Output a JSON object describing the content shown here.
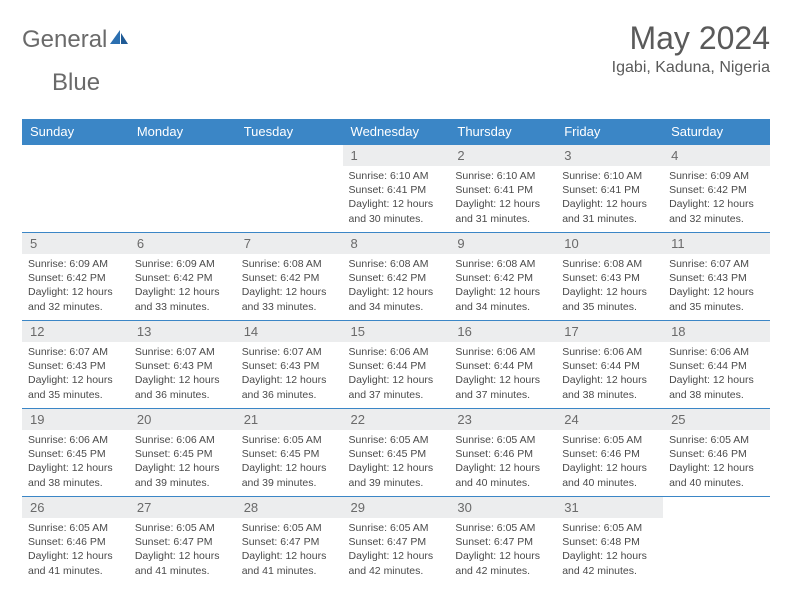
{
  "logo": {
    "part1": "General",
    "part2": "Blue"
  },
  "title": "May 2024",
  "location": "Igabi, Kaduna, Nigeria",
  "colors": {
    "header_bg": "#3b86c6",
    "header_text": "#ffffff",
    "daynum_bg": "#ecedee",
    "border": "#3b86c6",
    "text": "#4a4a4a",
    "logo_gray": "#6a6a6a",
    "logo_blue": "#2b6fb0"
  },
  "day_headers": [
    "Sunday",
    "Monday",
    "Tuesday",
    "Wednesday",
    "Thursday",
    "Friday",
    "Saturday"
  ],
  "weeks": [
    [
      null,
      null,
      null,
      {
        "n": "1",
        "sr": "6:10 AM",
        "ss": "6:41 PM",
        "dl": "12 hours and 30 minutes."
      },
      {
        "n": "2",
        "sr": "6:10 AM",
        "ss": "6:41 PM",
        "dl": "12 hours and 31 minutes."
      },
      {
        "n": "3",
        "sr": "6:10 AM",
        "ss": "6:41 PM",
        "dl": "12 hours and 31 minutes."
      },
      {
        "n": "4",
        "sr": "6:09 AM",
        "ss": "6:42 PM",
        "dl": "12 hours and 32 minutes."
      }
    ],
    [
      {
        "n": "5",
        "sr": "6:09 AM",
        "ss": "6:42 PM",
        "dl": "12 hours and 32 minutes."
      },
      {
        "n": "6",
        "sr": "6:09 AM",
        "ss": "6:42 PM",
        "dl": "12 hours and 33 minutes."
      },
      {
        "n": "7",
        "sr": "6:08 AM",
        "ss": "6:42 PM",
        "dl": "12 hours and 33 minutes."
      },
      {
        "n": "8",
        "sr": "6:08 AM",
        "ss": "6:42 PM",
        "dl": "12 hours and 34 minutes."
      },
      {
        "n": "9",
        "sr": "6:08 AM",
        "ss": "6:42 PM",
        "dl": "12 hours and 34 minutes."
      },
      {
        "n": "10",
        "sr": "6:08 AM",
        "ss": "6:43 PM",
        "dl": "12 hours and 35 minutes."
      },
      {
        "n": "11",
        "sr": "6:07 AM",
        "ss": "6:43 PM",
        "dl": "12 hours and 35 minutes."
      }
    ],
    [
      {
        "n": "12",
        "sr": "6:07 AM",
        "ss": "6:43 PM",
        "dl": "12 hours and 35 minutes."
      },
      {
        "n": "13",
        "sr": "6:07 AM",
        "ss": "6:43 PM",
        "dl": "12 hours and 36 minutes."
      },
      {
        "n": "14",
        "sr": "6:07 AM",
        "ss": "6:43 PM",
        "dl": "12 hours and 36 minutes."
      },
      {
        "n": "15",
        "sr": "6:06 AM",
        "ss": "6:44 PM",
        "dl": "12 hours and 37 minutes."
      },
      {
        "n": "16",
        "sr": "6:06 AM",
        "ss": "6:44 PM",
        "dl": "12 hours and 37 minutes."
      },
      {
        "n": "17",
        "sr": "6:06 AM",
        "ss": "6:44 PM",
        "dl": "12 hours and 38 minutes."
      },
      {
        "n": "18",
        "sr": "6:06 AM",
        "ss": "6:44 PM",
        "dl": "12 hours and 38 minutes."
      }
    ],
    [
      {
        "n": "19",
        "sr": "6:06 AM",
        "ss": "6:45 PM",
        "dl": "12 hours and 38 minutes."
      },
      {
        "n": "20",
        "sr": "6:06 AM",
        "ss": "6:45 PM",
        "dl": "12 hours and 39 minutes."
      },
      {
        "n": "21",
        "sr": "6:05 AM",
        "ss": "6:45 PM",
        "dl": "12 hours and 39 minutes."
      },
      {
        "n": "22",
        "sr": "6:05 AM",
        "ss": "6:45 PM",
        "dl": "12 hours and 39 minutes."
      },
      {
        "n": "23",
        "sr": "6:05 AM",
        "ss": "6:46 PM",
        "dl": "12 hours and 40 minutes."
      },
      {
        "n": "24",
        "sr": "6:05 AM",
        "ss": "6:46 PM",
        "dl": "12 hours and 40 minutes."
      },
      {
        "n": "25",
        "sr": "6:05 AM",
        "ss": "6:46 PM",
        "dl": "12 hours and 40 minutes."
      }
    ],
    [
      {
        "n": "26",
        "sr": "6:05 AM",
        "ss": "6:46 PM",
        "dl": "12 hours and 41 minutes."
      },
      {
        "n": "27",
        "sr": "6:05 AM",
        "ss": "6:47 PM",
        "dl": "12 hours and 41 minutes."
      },
      {
        "n": "28",
        "sr": "6:05 AM",
        "ss": "6:47 PM",
        "dl": "12 hours and 41 minutes."
      },
      {
        "n": "29",
        "sr": "6:05 AM",
        "ss": "6:47 PM",
        "dl": "12 hours and 42 minutes."
      },
      {
        "n": "30",
        "sr": "6:05 AM",
        "ss": "6:47 PM",
        "dl": "12 hours and 42 minutes."
      },
      {
        "n": "31",
        "sr": "6:05 AM",
        "ss": "6:48 PM",
        "dl": "12 hours and 42 minutes."
      },
      null
    ]
  ],
  "labels": {
    "sunrise": "Sunrise:",
    "sunset": "Sunset:",
    "daylight": "Daylight:"
  }
}
